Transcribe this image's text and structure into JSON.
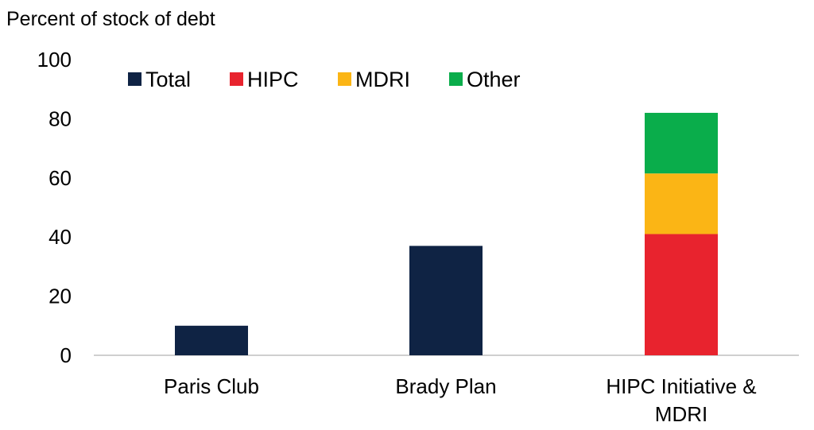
{
  "chart_data": {
    "type": "bar",
    "stacked": true,
    "ylabel": "Percent of stock of debt",
    "ylim": [
      0,
      100
    ],
    "yticks": [
      0,
      20,
      40,
      60,
      80,
      100
    ],
    "categories": [
      [
        "Paris Club"
      ],
      [
        "Brady Plan"
      ],
      [
        "HIPC Initiative &",
        "MDRI"
      ]
    ],
    "series": [
      {
        "name": "Total",
        "color": "#0f2344",
        "values": [
          10,
          37,
          0
        ]
      },
      {
        "name": "HIPC",
        "color": "#e8232e",
        "values": [
          0,
          0,
          41
        ]
      },
      {
        "name": "MDRI",
        "color": "#fbb515",
        "values": [
          0,
          0,
          20.5
        ]
      },
      {
        "name": "Other",
        "color": "#0aad4b",
        "values": [
          0,
          0,
          20.5
        ]
      }
    ],
    "legend_position": "top-left",
    "grid": false
  }
}
